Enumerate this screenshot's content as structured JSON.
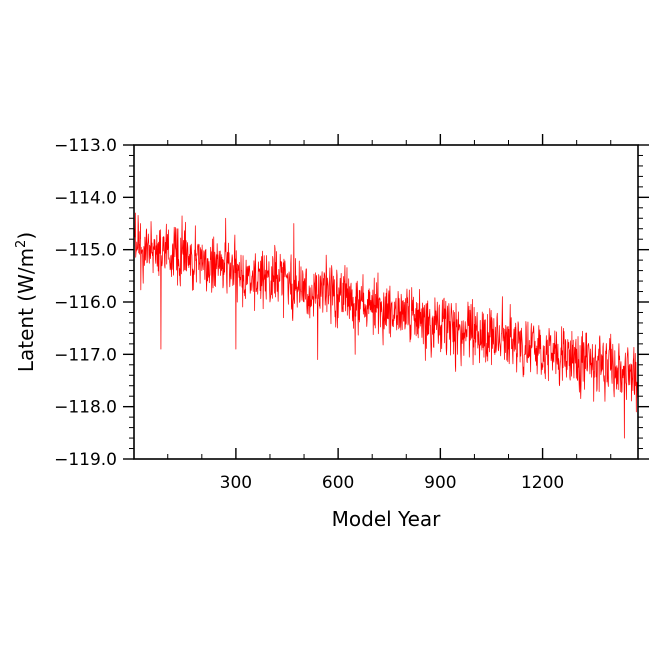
{
  "chart_data": {
    "type": "line",
    "xlabel": "Model Year",
    "ylabel": "Latent (W/m",
    "ylabel_sup": "2",
    "ylabel_close": ")",
    "xlim": [
      1,
      1480
    ],
    "ylim": [
      -119.0,
      -113.0
    ],
    "x_ticks": [
      {
        "value": 300,
        "label": "300"
      },
      {
        "value": 600,
        "label": "600"
      },
      {
        "value": 900,
        "label": "900"
      },
      {
        "value": 1200,
        "label": "1200"
      }
    ],
    "y_ticks": [
      {
        "value": -113.0,
        "label": "−113.0"
      },
      {
        "value": -114.0,
        "label": "−114.0"
      },
      {
        "value": -115.0,
        "label": "−115.0"
      },
      {
        "value": -116.0,
        "label": "−116.0"
      },
      {
        "value": -117.0,
        "label": "−117.0"
      },
      {
        "value": -118.0,
        "label": "−118.0"
      },
      {
        "value": -119.0,
        "label": "−119.0"
      }
    ],
    "series": [
      {
        "color": "#ff0000",
        "x_start": 1,
        "x_end": 1480,
        "trend": {
          "start": -114.9,
          "end": -117.4
        },
        "variability": 0.42,
        "points": [
          [
            5,
            -114.3
          ],
          [
            20,
            -114.5
          ],
          [
            35,
            -115.2
          ],
          [
            60,
            -114.8
          ],
          [
            80,
            -116.9
          ],
          [
            100,
            -115.0
          ],
          [
            130,
            -114.6
          ],
          [
            160,
            -115.3
          ],
          [
            200,
            -115.4
          ],
          [
            230,
            -115.6
          ],
          [
            270,
            -114.4
          ],
          [
            300,
            -116.9
          ],
          [
            330,
            -115.2
          ],
          [
            360,
            -115.8
          ],
          [
            400,
            -116.0
          ],
          [
            440,
            -116.3
          ],
          [
            470,
            -114.5
          ],
          [
            500,
            -116.0
          ],
          [
            540,
            -117.1
          ],
          [
            580,
            -115.6
          ],
          [
            600,
            -116.3
          ],
          [
            620,
            -115.3
          ],
          [
            650,
            -117.0
          ],
          [
            700,
            -116.2
          ],
          [
            750,
            -116.6
          ],
          [
            800,
            -116.4
          ],
          [
            850,
            -116.8
          ],
          [
            900,
            -116.5
          ],
          [
            950,
            -117.0
          ],
          [
            1000,
            -116.7
          ],
          [
            1050,
            -117.2
          ],
          [
            1100,
            -116.9
          ],
          [
            1150,
            -117.0
          ],
          [
            1200,
            -117.2
          ],
          [
            1250,
            -117.6
          ],
          [
            1300,
            -116.9
          ],
          [
            1330,
            -117.3
          ],
          [
            1350,
            -117.9
          ],
          [
            1390,
            -117.1
          ],
          [
            1420,
            -117.4
          ],
          [
            1440,
            -118.6
          ],
          [
            1460,
            -117.2
          ],
          [
            1475,
            -118.1
          ],
          [
            1480,
            -117.7
          ]
        ]
      }
    ],
    "grid": false,
    "legend": "none"
  }
}
